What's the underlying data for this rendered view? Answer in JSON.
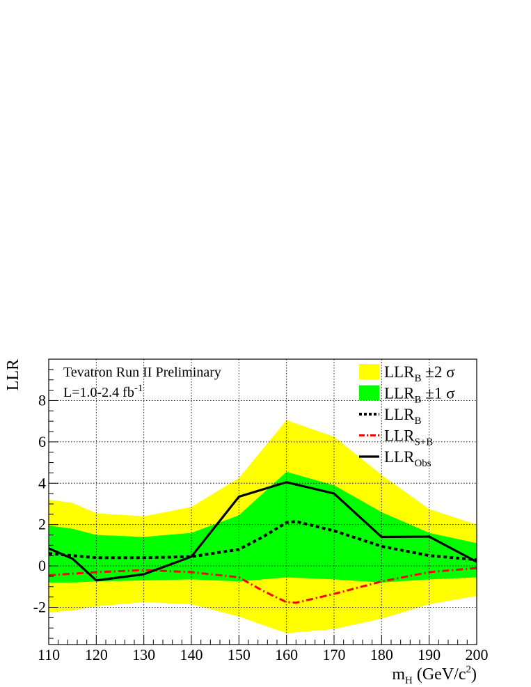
{
  "chart_data": {
    "type": "area",
    "xlabel_main": "m",
    "xlabel_sub": "H",
    "xlabel_rest": " (GeV/c",
    "xlabel_sup": "2",
    "xlabel_close": ")",
    "ylabel": "LLR",
    "xlim": [
      110,
      200
    ],
    "ylim": [
      -3.8,
      10.0
    ],
    "x_ticks": [
      110,
      120,
      130,
      140,
      150,
      160,
      170,
      180,
      190,
      200
    ],
    "y_ticks": [
      -2,
      0,
      2,
      4,
      6,
      8
    ],
    "grid": true,
    "annotations": {
      "line1": "Tevatron Run II Preliminary",
      "line2_main": "L=1.0-2.4 fb",
      "line2_sup": "-1"
    },
    "legend": [
      {
        "main": "LLR",
        "sub": "B",
        "suffix": "  ±2 σ",
        "style": "fill",
        "color": "#ffff00"
      },
      {
        "main": "LLR",
        "sub": "B",
        "suffix": "  ±1 σ",
        "style": "fill",
        "color": "#00ff00"
      },
      {
        "main": "LLR",
        "sub": "B",
        "suffix": "",
        "style": "dotted",
        "color": "#000000"
      },
      {
        "main": "LLR",
        "sub": "S+B",
        "suffix": "",
        "style": "dashdot",
        "color": "#ff0000"
      },
      {
        "main": "LLR",
        "sub": "Obs",
        "suffix": "",
        "style": "solid",
        "color": "#000000"
      }
    ],
    "x": [
      110,
      115,
      120,
      130,
      140,
      150,
      160,
      170,
      180,
      190,
      200
    ],
    "band2": {
      "color": "#ffff00",
      "upper": [
        3.2,
        3.05,
        2.55,
        2.4,
        2.85,
        4.25,
        7.05,
        6.25,
        4.4,
        2.75,
        2.0
      ],
      "lower": [
        -2.25,
        -2.15,
        -1.95,
        -1.75,
        -1.85,
        -2.45,
        -3.25,
        -3.05,
        -2.55,
        -1.85,
        -1.45
      ]
    },
    "band1": {
      "color": "#00ff00",
      "upper": [
        1.95,
        1.8,
        1.5,
        1.4,
        1.6,
        2.45,
        4.55,
        3.9,
        2.6,
        1.6,
        1.1
      ],
      "lower": [
        -0.8,
        -0.8,
        -0.75,
        -0.7,
        -0.65,
        -0.75,
        -0.55,
        -0.65,
        -0.8,
        -0.65,
        -0.55
      ]
    },
    "series": [
      {
        "name": "LLR_B",
        "style": "dotted",
        "color": "#000000",
        "x": [
          110,
          120,
          130,
          140,
          150,
          155,
          160,
          162,
          170,
          180,
          190,
          200
        ],
        "values": [
          0.6,
          0.4,
          0.4,
          0.45,
          0.8,
          1.4,
          2.1,
          2.15,
          1.7,
          0.95,
          0.5,
          0.3
        ]
      },
      {
        "name": "LLR_S+B",
        "style": "dashdot",
        "color": "#ff0000",
        "x": [
          110,
          120,
          130,
          140,
          150,
          155,
          160,
          162,
          170,
          180,
          190,
          200
        ],
        "values": [
          -0.45,
          -0.3,
          -0.2,
          -0.3,
          -0.55,
          -1.2,
          -1.75,
          -1.78,
          -1.35,
          -0.75,
          -0.3,
          -0.1
        ]
      },
      {
        "name": "LLR_Obs",
        "style": "solid",
        "color": "#000000",
        "x": [
          110,
          115,
          120,
          130,
          140,
          150,
          160,
          170,
          180,
          190,
          200
        ],
        "values": [
          0.85,
          0.35,
          -0.7,
          -0.4,
          0.45,
          3.35,
          4.05,
          3.5,
          1.4,
          1.42,
          0.2
        ]
      }
    ]
  }
}
